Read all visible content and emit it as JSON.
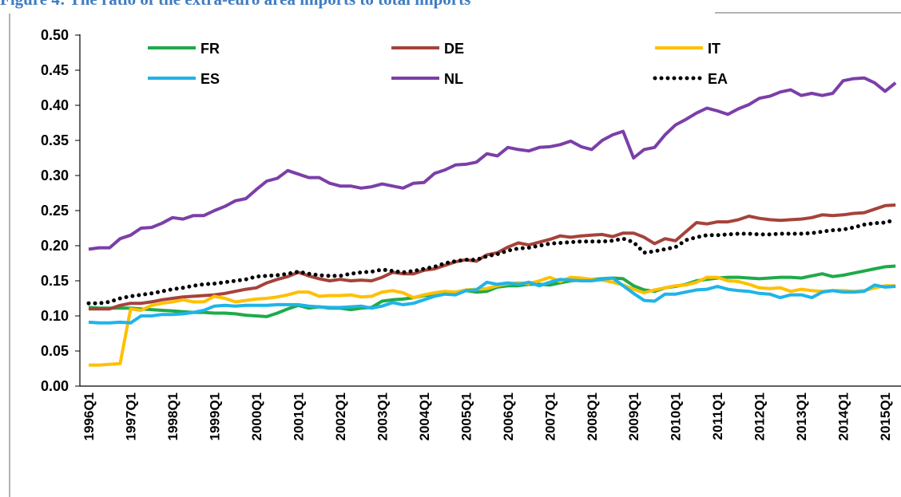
{
  "chart_data": {
    "type": "line",
    "title": "Figure 4: The ratio of the extra-euro area imports to total imports",
    "categories": [
      "1996Q1",
      null,
      null,
      null,
      "1997Q1",
      null,
      null,
      null,
      "1998Q1",
      null,
      null,
      null,
      "1999Q1",
      null,
      null,
      null,
      "2000Q1",
      null,
      null,
      null,
      "2001Q1",
      null,
      null,
      null,
      "2002Q1",
      null,
      null,
      null,
      "2003Q1",
      null,
      null,
      null,
      "2004Q1",
      null,
      null,
      null,
      "2005Q1",
      null,
      null,
      null,
      "2006Q1",
      null,
      null,
      null,
      "2007Q1",
      null,
      null,
      null,
      "2008Q1",
      null,
      null,
      null,
      "2009Q1",
      null,
      null,
      null,
      "2010Q1",
      null,
      null,
      null,
      "2011Q1",
      null,
      null,
      null,
      "2012Q1",
      null,
      null,
      null,
      "2013Q1",
      null,
      null,
      null,
      "2014Q1",
      null,
      null,
      null,
      "2015Q1",
      null
    ],
    "series": [
      {
        "name": "FR",
        "color": "#1faa4a",
        "values": [
          0.112,
          0.111,
          0.111,
          0.111,
          0.111,
          0.11,
          0.109,
          0.108,
          0.107,
          0.106,
          0.105,
          0.105,
          0.104,
          0.104,
          0.103,
          0.101,
          0.1,
          0.099,
          0.104,
          0.11,
          0.115,
          0.111,
          0.113,
          0.111,
          0.111,
          0.109,
          0.111,
          0.112,
          0.121,
          0.123,
          0.124,
          0.126,
          0.129,
          0.13,
          0.132,
          0.133,
          0.136,
          0.134,
          0.135,
          0.141,
          0.143,
          0.143,
          0.145,
          0.145,
          0.144,
          0.147,
          0.15,
          0.151,
          0.152,
          0.153,
          0.154,
          0.153,
          0.143,
          0.137,
          0.135,
          0.14,
          0.142,
          0.145,
          0.15,
          0.152,
          0.154,
          0.155,
          0.155,
          0.154,
          0.153,
          0.154,
          0.155,
          0.155,
          0.154,
          0.157,
          0.16,
          0.156,
          0.158,
          0.161,
          0.164,
          0.167,
          0.17,
          0.171
        ]
      },
      {
        "name": "DE",
        "color": "#a5433a",
        "values": [
          0.11,
          0.11,
          0.11,
          0.115,
          0.118,
          0.118,
          0.12,
          0.123,
          0.125,
          0.127,
          0.128,
          0.129,
          0.13,
          0.132,
          0.135,
          0.138,
          0.14,
          0.147,
          0.152,
          0.156,
          0.162,
          0.157,
          0.153,
          0.15,
          0.152,
          0.15,
          0.151,
          0.15,
          0.155,
          0.162,
          0.16,
          0.16,
          0.165,
          0.167,
          0.172,
          0.177,
          0.18,
          0.178,
          0.187,
          0.19,
          0.198,
          0.204,
          0.201,
          0.205,
          0.209,
          0.214,
          0.212,
          0.214,
          0.215,
          0.216,
          0.213,
          0.218,
          0.218,
          0.212,
          0.203,
          0.21,
          0.207,
          0.22,
          0.233,
          0.231,
          0.234,
          0.234,
          0.237,
          0.242,
          0.239,
          0.237,
          0.236,
          0.237,
          0.238,
          0.24,
          0.244,
          0.243,
          0.244,
          0.246,
          0.247,
          0.252,
          0.257,
          0.258
        ]
      },
      {
        "name": "IT",
        "color": "#ffc000",
        "values": [
          0.03,
          0.03,
          0.031,
          0.032,
          0.11,
          0.108,
          0.115,
          0.118,
          0.12,
          0.123,
          0.12,
          0.12,
          0.128,
          0.125,
          0.12,
          0.122,
          0.124,
          0.125,
          0.127,
          0.13,
          0.134,
          0.134,
          0.128,
          0.129,
          0.129,
          0.13,
          0.127,
          0.128,
          0.134,
          0.136,
          0.133,
          0.126,
          0.13,
          0.133,
          0.135,
          0.134,
          0.137,
          0.138,
          0.139,
          0.143,
          0.146,
          0.147,
          0.146,
          0.15,
          0.155,
          0.149,
          0.155,
          0.154,
          0.152,
          0.151,
          0.148,
          0.144,
          0.138,
          0.133,
          0.137,
          0.14,
          0.143,
          0.144,
          0.148,
          0.155,
          0.155,
          0.15,
          0.149,
          0.145,
          0.14,
          0.139,
          0.14,
          0.135,
          0.138,
          0.136,
          0.135,
          0.136,
          0.136,
          0.135,
          0.136,
          0.14,
          0.143,
          0.143
        ]
      },
      {
        "name": "ES",
        "color": "#1fb4e8",
        "values": [
          0.091,
          0.09,
          0.09,
          0.091,
          0.09,
          0.1,
          0.1,
          0.102,
          0.102,
          0.103,
          0.105,
          0.108,
          0.114,
          0.115,
          0.114,
          0.115,
          0.115,
          0.115,
          0.116,
          0.116,
          0.116,
          0.114,
          0.113,
          0.112,
          0.112,
          0.113,
          0.114,
          0.111,
          0.114,
          0.119,
          0.116,
          0.118,
          0.123,
          0.128,
          0.131,
          0.13,
          0.136,
          0.137,
          0.148,
          0.145,
          0.147,
          0.145,
          0.148,
          0.143,
          0.148,
          0.152,
          0.151,
          0.15,
          0.15,
          0.152,
          0.154,
          0.143,
          0.132,
          0.122,
          0.121,
          0.131,
          0.131,
          0.134,
          0.137,
          0.138,
          0.142,
          0.138,
          0.136,
          0.135,
          0.132,
          0.131,
          0.126,
          0.13,
          0.13,
          0.126,
          0.134,
          0.136,
          0.134,
          0.134,
          0.135,
          0.144,
          0.141,
          0.142
        ]
      },
      {
        "name": "NL",
        "color": "#7b3fa8",
        "values": [
          0.195,
          0.197,
          0.197,
          0.21,
          0.215,
          0.225,
          0.226,
          0.232,
          0.24,
          0.238,
          0.243,
          0.243,
          0.25,
          0.256,
          0.264,
          0.267,
          0.28,
          0.292,
          0.296,
          0.307,
          0.302,
          0.297,
          0.297,
          0.289,
          0.285,
          0.285,
          0.282,
          0.284,
          0.288,
          0.285,
          0.282,
          0.289,
          0.29,
          0.303,
          0.308,
          0.315,
          0.316,
          0.319,
          0.331,
          0.328,
          0.34,
          0.337,
          0.335,
          0.34,
          0.341,
          0.344,
          0.349,
          0.341,
          0.337,
          0.35,
          0.358,
          0.363,
          0.325,
          0.337,
          0.34,
          0.358,
          0.372,
          0.38,
          0.389,
          0.396,
          0.392,
          0.387,
          0.395,
          0.401,
          0.41,
          0.413,
          0.419,
          0.422,
          0.414,
          0.417,
          0.414,
          0.417,
          0.435,
          0.438,
          0.439,
          0.432,
          0.42,
          0.432
        ]
      },
      {
        "name": "EA",
        "color": "#000000",
        "dotted": true,
        "values": [
          0.118,
          0.118,
          0.12,
          0.125,
          0.128,
          0.13,
          0.132,
          0.135,
          0.138,
          0.14,
          0.143,
          0.145,
          0.146,
          0.148,
          0.15,
          0.152,
          0.156,
          0.157,
          0.158,
          0.16,
          0.163,
          0.16,
          0.158,
          0.157,
          0.157,
          0.16,
          0.162,
          0.163,
          0.166,
          0.164,
          0.162,
          0.164,
          0.167,
          0.17,
          0.175,
          0.178,
          0.18,
          0.18,
          0.185,
          0.188,
          0.193,
          0.196,
          0.197,
          0.2,
          0.203,
          0.204,
          0.205,
          0.206,
          0.206,
          0.206,
          0.207,
          0.21,
          0.205,
          0.19,
          0.192,
          0.195,
          0.198,
          0.208,
          0.212,
          0.215,
          0.215,
          0.216,
          0.217,
          0.217,
          0.216,
          0.216,
          0.217,
          0.217,
          0.217,
          0.218,
          0.22,
          0.222,
          0.223,
          0.226,
          0.23,
          0.232,
          0.233,
          0.237
        ]
      }
    ],
    "ylim": [
      0,
      0.5
    ],
    "yticks": [
      {
        "value": 0,
        "label": "0.00"
      },
      0.05,
      {
        "value": 0.1,
        "label": "0.10"
      },
      0.15,
      {
        "value": 0.2,
        "label": "0.20"
      },
      0.25,
      {
        "value": 0.3,
        "label": "0.30"
      },
      0.35,
      {
        "value": 0.4,
        "label": "0.40"
      },
      0.45,
      {
        "value": 0.5,
        "label": "0.50"
      }
    ],
    "grid": false
  }
}
